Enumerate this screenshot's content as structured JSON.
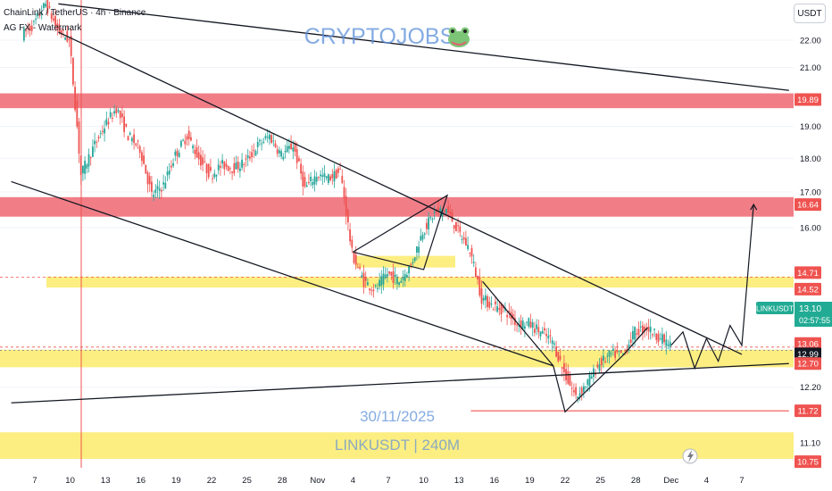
{
  "header": {
    "symbol_line": "ChainLink / TetherUS · 4h · Binance",
    "indicator_line": "AG FX - Watermark",
    "currency_button": "USDT"
  },
  "watermark": {
    "brand": "CRYPTOJOBS",
    "brand_icon": "frog-icon",
    "date": "30/11/2025",
    "pair_timeframe": "LINKUSDT | 240M"
  },
  "colors": {
    "resistance_zone": "#f0707a",
    "support_zone": "#fbeb6b",
    "bull_candle": "#26a69a",
    "bear_candle": "#ef5350",
    "watermark_text": "#5b8fd8",
    "price_label": "#ef5350",
    "current_price": "#22ab94"
  },
  "chart_data": {
    "type": "candlestick",
    "title": "ChainLink / TetherUS · 4h · Binance",
    "y_unit": "USDT",
    "y_scale": "log",
    "ylim": [
      10.55,
      23.9
    ],
    "x_ticks": [
      "7",
      "10",
      "13",
      "16",
      "19",
      "22",
      "25",
      "28",
      "Nov",
      "4",
      "7",
      "10",
      "13",
      "16",
      "19",
      "22",
      "25",
      "28",
      "Dec",
      "4",
      "7"
    ],
    "y_ticks": [
      22.0,
      21.0,
      20.0,
      19.0,
      18.0,
      17.0,
      16.0,
      13.0,
      12.2,
      11.1
    ],
    "price_labels": [
      {
        "value": "19.89",
        "kind": "resistance"
      },
      {
        "value": "16.64",
        "kind": "resistance"
      },
      {
        "value": "14.71",
        "kind": "support"
      },
      {
        "value": "14.52",
        "kind": "support"
      },
      {
        "value": "13.06",
        "kind": "support"
      },
      {
        "value": "12.99",
        "kind": "neutral"
      },
      {
        "value": "12.70",
        "kind": "support"
      },
      {
        "value": "11.72",
        "kind": "level"
      },
      {
        "value": "10.75",
        "kind": "support"
      }
    ],
    "current_price": {
      "symbol": "LINKUSDT",
      "price": "13.10",
      "countdown": "02:57:55"
    },
    "zones": [
      {
        "kind": "resistance",
        "from": 19.6,
        "to": 20.1
      },
      {
        "kind": "resistance",
        "from": 16.3,
        "to": 16.85
      },
      {
        "kind": "support",
        "from": 14.45,
        "to": 14.72
      },
      {
        "kind": "support",
        "from": 12.62,
        "to": 13.0
      },
      {
        "kind": "support",
        "from": 10.8,
        "to": 11.3
      }
    ],
    "price_path": [
      {
        "x": "Oct 6",
        "y": 22.2
      },
      {
        "x": "Oct 7",
        "y": 22.6
      },
      {
        "x": "Oct 8",
        "y": 23.4
      },
      {
        "x": "Oct 9",
        "y": 22.4
      },
      {
        "x": "Oct 10",
        "y": 22.0
      },
      {
        "x": "Oct 11",
        "y": 17.5
      },
      {
        "x": "Oct 12",
        "y": 18.3
      },
      {
        "x": "Oct 13",
        "y": 19.0
      },
      {
        "x": "Oct 14",
        "y": 19.6
      },
      {
        "x": "Oct 15",
        "y": 18.7
      },
      {
        "x": "Oct 16",
        "y": 18.3
      },
      {
        "x": "Oct 17",
        "y": 16.9
      },
      {
        "x": "Oct 18",
        "y": 17.2
      },
      {
        "x": "Oct 19",
        "y": 18.1
      },
      {
        "x": "Oct 20",
        "y": 18.7
      },
      {
        "x": "Oct 21",
        "y": 18.0
      },
      {
        "x": "Oct 22",
        "y": 17.5
      },
      {
        "x": "Oct 23",
        "y": 17.8
      },
      {
        "x": "Oct 24",
        "y": 17.7
      },
      {
        "x": "Oct 25",
        "y": 17.9
      },
      {
        "x": "Oct 26",
        "y": 18.4
      },
      {
        "x": "Oct 27",
        "y": 18.7
      },
      {
        "x": "Oct 28",
        "y": 18.1
      },
      {
        "x": "Oct 29",
        "y": 18.4
      },
      {
        "x": "Oct 30",
        "y": 17.1
      },
      {
        "x": "Oct 31",
        "y": 17.5
      },
      {
        "x": "Nov 1",
        "y": 17.4
      },
      {
        "x": "Nov 2",
        "y": 17.6
      },
      {
        "x": "Nov 3",
        "y": 15.3
      },
      {
        "x": "Nov 4",
        "y": 14.6
      },
      {
        "x": "Nov 5",
        "y": 14.4
      },
      {
        "x": "Nov 6",
        "y": 14.8
      },
      {
        "x": "Nov 7",
        "y": 14.6
      },
      {
        "x": "Nov 8",
        "y": 15.0
      },
      {
        "x": "Nov 9",
        "y": 15.9
      },
      {
        "x": "Nov 10",
        "y": 16.4
      },
      {
        "x": "Nov 11",
        "y": 16.5
      },
      {
        "x": "Nov 12",
        "y": 15.9
      },
      {
        "x": "Nov 13",
        "y": 15.4
      },
      {
        "x": "Nov 14",
        "y": 14.2
      },
      {
        "x": "Nov 15",
        "y": 14.0
      },
      {
        "x": "Nov 16",
        "y": 13.9
      },
      {
        "x": "Nov 17",
        "y": 13.6
      },
      {
        "x": "Nov 18",
        "y": 13.6
      },
      {
        "x": "Nov 19",
        "y": 13.4
      },
      {
        "x": "Nov 20",
        "y": 13.2
      },
      {
        "x": "Nov 21",
        "y": 12.5
      },
      {
        "x": "Nov 22",
        "y": 12.0
      },
      {
        "x": "Nov 23",
        "y": 12.3
      },
      {
        "x": "Nov 24",
        "y": 12.7
      },
      {
        "x": "Nov 25",
        "y": 12.9
      },
      {
        "x": "Nov 26",
        "y": 12.9
      },
      {
        "x": "Nov 27",
        "y": 13.4
      },
      {
        "x": "Nov 28",
        "y": 13.5
      },
      {
        "x": "Nov 29",
        "y": 13.3
      },
      {
        "x": "Nov 30",
        "y": 13.1
      }
    ],
    "trend_lines": [
      {
        "name": "upper-channel",
        "from": {
          "x": "Oct 9",
          "y": 23.4
        },
        "to": {
          "x": "Dec 10",
          "y": 20.2
        }
      },
      {
        "name": "descending-resistance",
        "from": {
          "x": "Oct 9",
          "y": 22.3
        },
        "to": {
          "x": "Dec 6",
          "y": 12.9
        }
      },
      {
        "name": "descending-support",
        "from": {
          "x": "Oct 5",
          "y": 17.3
        },
        "to": {
          "x": "Nov 20",
          "y": 12.65
        }
      },
      {
        "name": "rising-support",
        "from": {
          "x": "Oct 5",
          "y": 11.88
        },
        "to": {
          "x": "Dec 10",
          "y": 12.7
        }
      },
      {
        "name": "horizontal-11.72",
        "from": {
          "x": "Nov 13",
          "y": 11.72
        },
        "to": {
          "x": "Dec 10",
          "y": 11.72
        }
      }
    ],
    "projection": [
      {
        "x": "Nov 30",
        "y": 13.1
      },
      {
        "x": "Dec 1",
        "y": 13.4
      },
      {
        "x": "Dec 2",
        "y": 12.6
      },
      {
        "x": "Dec 3",
        "y": 13.25
      },
      {
        "x": "Dec 4",
        "y": 12.75
      },
      {
        "x": "Dec 5",
        "y": 13.55
      },
      {
        "x": "Dec 6",
        "y": 13.1
      },
      {
        "x": "Dec 7",
        "y": 16.64
      }
    ]
  }
}
